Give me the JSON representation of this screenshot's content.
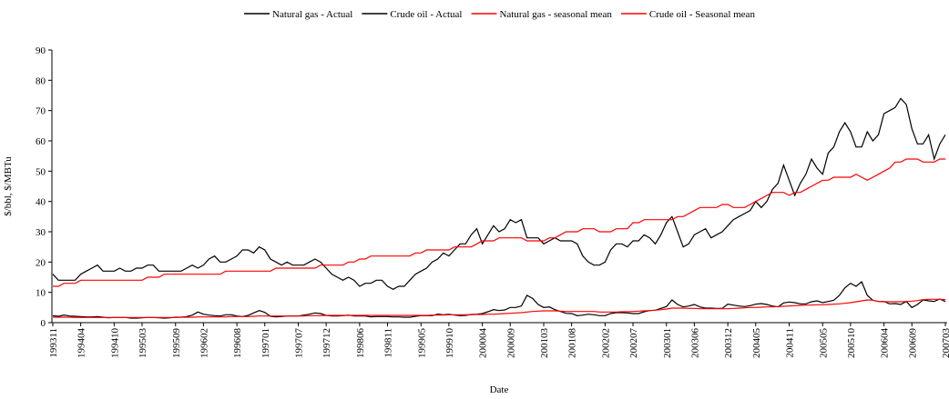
{
  "chart_data": {
    "type": "line",
    "x_label": "Date",
    "y_label": "$/bbl, $/MBTu",
    "legend": "top",
    "ylim": [
      0,
      90
    ],
    "yticks": [
      0,
      10,
      20,
      30,
      40,
      50,
      60,
      70,
      80,
      90
    ],
    "categories": [
      "199311",
      null,
      null,
      null,
      null,
      "199404",
      null,
      null,
      null,
      null,
      null,
      "199410",
      null,
      null,
      null,
      null,
      "199503",
      null,
      null,
      null,
      null,
      null,
      "199509",
      null,
      null,
      null,
      null,
      "199602",
      null,
      null,
      null,
      null,
      null,
      "199608",
      null,
      null,
      null,
      null,
      "199701",
      null,
      null,
      null,
      null,
      null,
      "199707",
      null,
      null,
      null,
      null,
      "199712",
      null,
      null,
      null,
      null,
      null,
      "199806",
      null,
      null,
      null,
      null,
      "199811",
      null,
      null,
      null,
      null,
      null,
      "199905",
      null,
      null,
      null,
      null,
      "199910",
      null,
      null,
      null,
      null,
      null,
      "200004",
      null,
      null,
      null,
      null,
      "200009",
      null,
      null,
      null,
      null,
      null,
      "200103",
      null,
      null,
      null,
      null,
      "200108",
      null,
      null,
      null,
      null,
      null,
      "200202",
      null,
      null,
      null,
      null,
      "200207",
      null,
      null,
      null,
      null,
      null,
      "200301",
      null,
      null,
      null,
      null,
      "200306",
      null,
      null,
      null,
      null,
      null,
      "200312",
      null,
      null,
      null,
      null,
      "200405",
      null,
      null,
      null,
      null,
      null,
      "200411",
      null,
      null,
      null,
      null,
      null,
      "200505",
      null,
      null,
      null,
      null,
      "200510",
      null,
      null,
      null,
      null,
      null,
      "200604",
      null,
      null,
      null,
      null,
      "200609",
      null,
      null,
      null,
      null,
      null,
      "200703"
    ],
    "series": [
      {
        "name": "Natural gas - Actual",
        "color": "#000000",
        "values": [
          2.3,
          2.1,
          2.5,
          2.2,
          2.1,
          2.0,
          1.9,
          1.9,
          2.0,
          1.8,
          1.6,
          1.7,
          1.7,
          1.7,
          1.5,
          1.5,
          1.6,
          1.7,
          1.7,
          1.6,
          1.5,
          1.6,
          1.8,
          1.8,
          2.0,
          2.5,
          3.5,
          2.8,
          2.5,
          2.3,
          2.2,
          2.6,
          2.6,
          2.2,
          2.0,
          2.4,
          3.2,
          4.0,
          3.4,
          2.1,
          1.9,
          2.0,
          2.2,
          2.2,
          2.2,
          2.5,
          2.8,
          3.2,
          3.0,
          2.4,
          2.2,
          2.2,
          2.3,
          2.5,
          2.2,
          2.2,
          2.2,
          1.9,
          2.0,
          2.0,
          2.0,
          1.9,
          1.9,
          1.8,
          1.8,
          2.1,
          2.3,
          2.3,
          2.3,
          2.8,
          2.6,
          2.8,
          2.5,
          2.3,
          2.4,
          2.7,
          2.8,
          3.0,
          3.6,
          4.3,
          4.0,
          4.2,
          5.0,
          5.0,
          5.5,
          9.0,
          8.0,
          6.0,
          5.0,
          5.2,
          4.3,
          3.7,
          3.1,
          3.0,
          2.3,
          2.5,
          2.8,
          2.6,
          2.3,
          2.3,
          3.0,
          3.3,
          3.3,
          3.2,
          3.0,
          3.0,
          3.6,
          4.0,
          4.1,
          4.7,
          5.3,
          7.5,
          6.0,
          5.2,
          5.5,
          6.0,
          5.2,
          4.8,
          4.8,
          4.7,
          4.7,
          6.1,
          5.8,
          5.5,
          5.3,
          5.6,
          6.1,
          6.3,
          6.0,
          5.5,
          5.2,
          6.5,
          6.8,
          6.6,
          6.2,
          6.2,
          6.9,
          7.2,
          6.6,
          7.0,
          7.4,
          9.0,
          11.5,
          13.0,
          12.0,
          13.5,
          9.0,
          7.4,
          7.0,
          7.0,
          6.2,
          6.3,
          6.0,
          7.0,
          5.0,
          6.0,
          7.5,
          7.2,
          7.0,
          7.8,
          7.0
        ]
      },
      {
        "name": "Crude oil - Actual",
        "color": "#000000",
        "values": [
          16,
          14,
          14,
          14,
          14,
          16,
          17,
          18,
          19,
          17,
          17,
          17,
          18,
          17,
          17,
          18,
          18,
          19,
          19,
          17,
          17,
          17,
          17,
          17,
          18,
          19,
          18,
          19,
          21,
          22,
          20,
          20,
          21,
          22,
          24,
          24,
          23,
          25,
          24,
          21,
          20,
          19,
          20,
          19,
          19,
          19,
          20,
          21,
          20,
          18,
          16,
          15,
          14,
          15,
          14,
          12,
          13,
          13,
          14,
          14,
          12,
          11,
          12,
          12,
          14,
          16,
          17,
          18,
          20,
          21,
          23,
          22,
          24,
          26,
          26,
          29,
          31,
          26,
          29,
          32,
          30,
          31,
          34,
          33,
          34,
          28,
          28,
          28,
          26,
          27,
          28,
          27,
          27,
          27,
          26,
          22,
          20,
          19,
          19,
          20,
          24,
          26,
          26,
          25,
          27,
          27,
          29,
          28,
          26,
          29,
          33,
          35,
          30,
          25,
          26,
          29,
          30,
          31,
          28,
          29,
          30,
          32,
          34,
          35,
          36,
          37,
          40,
          38,
          40,
          44,
          46,
          52,
          47,
          42,
          46,
          49,
          54,
          51,
          49,
          56,
          58,
          63,
          66,
          63,
          58,
          58,
          63,
          60,
          62,
          69,
          70,
          71,
          74,
          72,
          64,
          59,
          59,
          62,
          54,
          59,
          62
        ]
      },
      {
        "name": "Natural gas - seasonal mean",
        "color": "#ff0000",
        "values": [
          1.8,
          1.8,
          1.8,
          1.8,
          1.7,
          1.7,
          1.7,
          1.7,
          1.7,
          1.7,
          1.7,
          1.7,
          1.7,
          1.7,
          1.7,
          1.7,
          1.7,
          1.7,
          1.7,
          1.7,
          1.7,
          1.7,
          1.7,
          1.8,
          1.8,
          1.8,
          1.9,
          1.9,
          1.9,
          1.9,
          1.9,
          1.9,
          2.0,
          2.0,
          2.0,
          2.0,
          2.1,
          2.2,
          2.2,
          2.2,
          2.2,
          2.2,
          2.2,
          2.2,
          2.2,
          2.2,
          2.3,
          2.3,
          2.3,
          2.4,
          2.4,
          2.4,
          2.4,
          2.4,
          2.4,
          2.4,
          2.4,
          2.4,
          2.4,
          2.4,
          2.4,
          2.4,
          2.4,
          2.4,
          2.4,
          2.4,
          2.4,
          2.4,
          2.5,
          2.5,
          2.5,
          2.6,
          2.6,
          2.6,
          2.6,
          2.6,
          2.7,
          2.7,
          2.8,
          2.8,
          2.9,
          3.0,
          3.1,
          3.2,
          3.3,
          3.5,
          3.7,
          3.8,
          3.9,
          3.9,
          3.9,
          3.8,
          3.7,
          3.7,
          3.7,
          3.7,
          3.7,
          3.7,
          3.5,
          3.5,
          3.5,
          3.5,
          3.6,
          3.6,
          3.7,
          3.8,
          3.9,
          4.0,
          4.1,
          4.3,
          4.5,
          4.8,
          4.8,
          4.8,
          4.7,
          4.7,
          4.6,
          4.6,
          4.6,
          4.6,
          4.6,
          4.6,
          4.7,
          4.8,
          4.9,
          5.0,
          5.0,
          5.1,
          5.2,
          5.2,
          5.3,
          5.4,
          5.5,
          5.6,
          5.7,
          5.8,
          5.8,
          5.9,
          5.9,
          6.0,
          6.1,
          6.2,
          6.4,
          6.6,
          6.9,
          7.2,
          7.5,
          7.4,
          7.0,
          6.9,
          6.9,
          6.9,
          6.9,
          7.0,
          7.1,
          7.3,
          7.6,
          7.7,
          7.7,
          7.7,
          7.6
        ]
      },
      {
        "name": "Crude oil - Seasonal mean",
        "color": "#ff0000",
        "values": [
          12,
          12,
          13,
          13,
          13,
          14,
          14,
          14,
          14,
          14,
          14,
          14,
          14,
          14,
          14,
          14,
          14,
          15,
          15,
          15,
          16,
          16,
          16,
          16,
          16,
          16,
          16,
          16,
          16,
          16,
          16,
          17,
          17,
          17,
          17,
          17,
          17,
          17,
          17,
          17,
          18,
          18,
          18,
          18,
          18,
          18,
          18,
          18,
          19,
          19,
          19,
          19,
          19,
          20,
          20,
          21,
          21,
          22,
          22,
          22,
          22,
          22,
          22,
          22,
          22,
          23,
          23,
          24,
          24,
          24,
          24,
          24,
          25,
          25,
          25,
          25,
          26,
          27,
          27,
          27,
          28,
          28,
          28,
          28,
          28,
          27,
          27,
          27,
          27,
          28,
          28,
          29,
          30,
          30,
          30,
          31,
          31,
          31,
          30,
          30,
          30,
          31,
          31,
          31,
          33,
          33,
          34,
          34,
          34,
          34,
          34,
          34,
          35,
          35,
          36,
          37,
          38,
          38,
          38,
          38,
          39,
          39,
          38,
          38,
          38,
          39,
          40,
          41,
          42,
          43,
          43,
          43,
          42,
          43,
          43,
          44,
          45,
          46,
          47,
          47,
          48,
          48,
          48,
          48,
          49,
          48,
          47,
          48,
          49,
          50,
          51,
          53,
          53,
          54,
          54,
          54,
          53,
          53,
          53,
          54,
          54
        ]
      }
    ]
  }
}
